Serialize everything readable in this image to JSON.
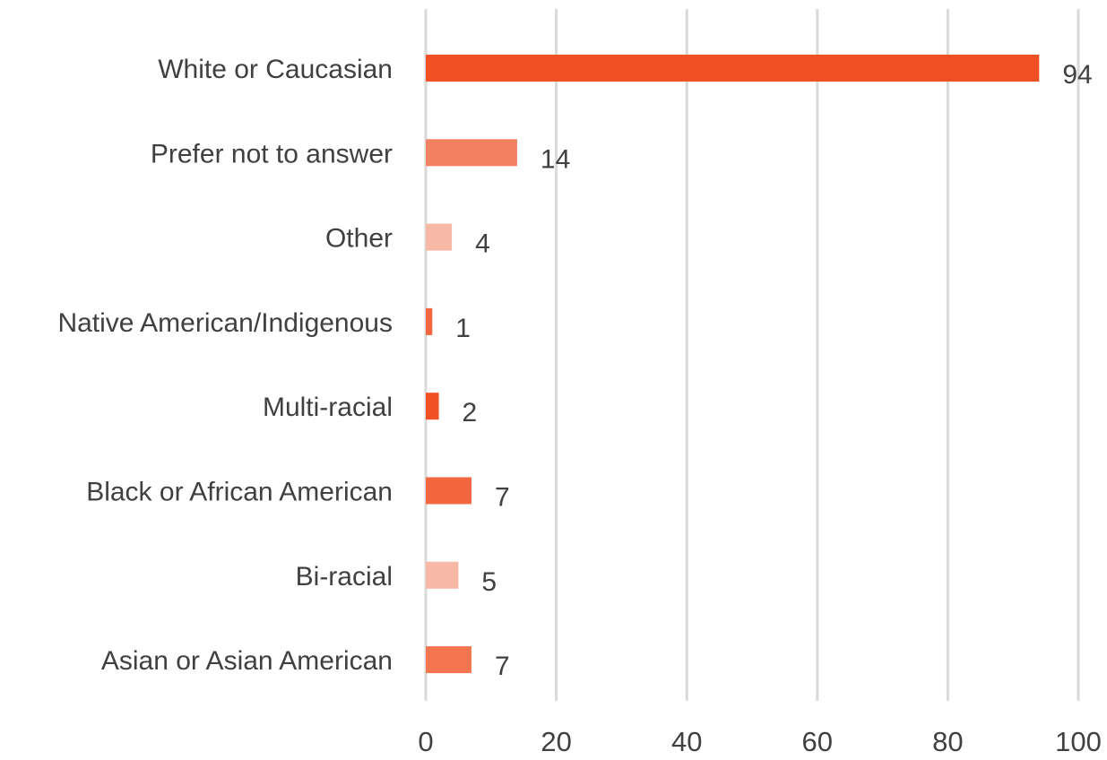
{
  "chart_data": {
    "type": "bar",
    "orientation": "horizontal",
    "categories": [
      "White or Caucasian",
      "Prefer not to answer",
      "Other",
      "Native American/Indigenous",
      "Multi-racial",
      "Black or African American",
      "Bi-racial",
      "Asian or Asian American"
    ],
    "values": [
      94,
      14,
      4,
      1,
      2,
      7,
      5,
      7
    ],
    "bar_colors": [
      "#f05023",
      "#f38061",
      "#f8b8a6",
      "#f26640",
      "#f05023",
      "#f26640",
      "#f8b8a6",
      "#f37650"
    ],
    "xlim": [
      0,
      100
    ],
    "xticks": [
      0,
      20,
      40,
      60,
      80,
      100
    ],
    "data_labels": true,
    "grid": "vertical",
    "title": "",
    "xlabel": "",
    "ylabel": ""
  }
}
